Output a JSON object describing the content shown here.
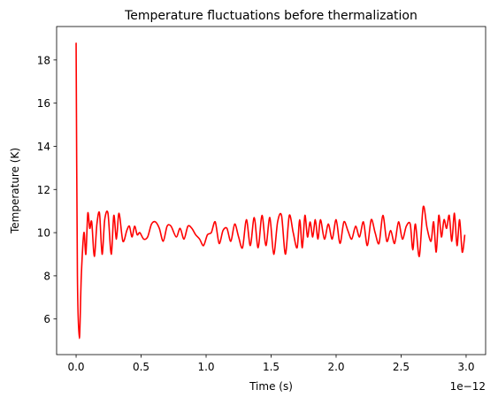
{
  "chart_data": {
    "type": "line",
    "title": "Temperature fluctuations before thermalization",
    "xlabel": "Time (s)",
    "ylabel": "Temperature (K)",
    "x_offset_label": "1e−12",
    "xlim": [
      -0.15,
      3.15
    ],
    "ylim": [
      4.35,
      19.55
    ],
    "x_ticks": [
      0.0,
      0.5,
      1.0,
      1.5,
      2.0,
      2.5,
      3.0
    ],
    "x_tick_labels": [
      "0.0",
      "0.5",
      "1.0",
      "1.5",
      "2.0",
      "2.5",
      "3.0"
    ],
    "y_ticks": [
      6,
      8,
      10,
      12,
      14,
      16,
      18
    ],
    "y_tick_labels": [
      "6",
      "8",
      "10",
      "12",
      "14",
      "16",
      "18"
    ],
    "grid": false,
    "legend": "none",
    "series": [
      {
        "color": "#ff0000",
        "x": [
          0.0,
          0.01,
          0.025,
          0.04,
          0.06,
          0.075,
          0.09,
          0.105,
          0.12,
          0.14,
          0.16,
          0.18,
          0.2,
          0.22,
          0.245,
          0.27,
          0.29,
          0.31,
          0.33,
          0.36,
          0.39,
          0.41,
          0.43,
          0.45,
          0.47,
          0.49,
          0.52,
          0.55,
          0.58,
          0.61,
          0.64,
          0.67,
          0.7,
          0.73,
          0.77,
          0.8,
          0.83,
          0.86,
          0.89,
          0.92,
          0.95,
          0.98,
          1.01,
          1.04,
          1.07,
          1.1,
          1.13,
          1.16,
          1.19,
          1.22,
          1.25,
          1.28,
          1.31,
          1.34,
          1.37,
          1.4,
          1.43,
          1.46,
          1.49,
          1.52,
          1.55,
          1.58,
          1.61,
          1.64,
          1.67,
          1.7,
          1.72,
          1.74,
          1.76,
          1.78,
          1.8,
          1.82,
          1.84,
          1.86,
          1.88,
          1.91,
          1.94,
          1.97,
          2.0,
          2.03,
          2.06,
          2.09,
          2.12,
          2.15,
          2.18,
          2.21,
          2.24,
          2.27,
          2.3,
          2.33,
          2.36,
          2.39,
          2.42,
          2.45,
          2.48,
          2.51,
          2.54,
          2.57,
          2.59,
          2.61,
          2.64,
          2.67,
          2.7,
          2.73,
          2.75,
          2.77,
          2.79,
          2.81,
          2.83,
          2.85,
          2.87,
          2.89,
          2.91,
          2.93,
          2.95,
          2.97,
          2.99
        ],
        "y": [
          18.8,
          8.0,
          5.1,
          8.0,
          10.0,
          9.0,
          10.9,
          10.2,
          10.5,
          8.9,
          10.4,
          10.9,
          9.0,
          10.6,
          10.9,
          9.0,
          10.8,
          9.7,
          10.9,
          9.6,
          10.1,
          10.3,
          9.8,
          10.3,
          9.9,
          10.0,
          9.7,
          9.8,
          10.4,
          10.5,
          10.2,
          9.6,
          10.3,
          10.3,
          9.8,
          10.2,
          9.7,
          10.3,
          10.2,
          9.9,
          9.7,
          9.4,
          9.9,
          10.0,
          10.5,
          9.5,
          10.1,
          10.2,
          9.6,
          10.4,
          9.8,
          9.3,
          10.6,
          9.4,
          10.7,
          9.3,
          10.8,
          9.4,
          10.7,
          9.0,
          10.5,
          10.8,
          9.0,
          10.8,
          10.0,
          9.3,
          10.6,
          9.3,
          10.8,
          9.8,
          10.5,
          9.8,
          10.6,
          9.7,
          10.6,
          9.7,
          10.4,
          9.7,
          10.6,
          9.5,
          10.5,
          10.1,
          9.7,
          10.3,
          9.8,
          10.5,
          9.4,
          10.6,
          10.0,
          9.5,
          10.8,
          9.6,
          10.1,
          9.5,
          10.5,
          9.7,
          10.3,
          10.4,
          9.2,
          10.4,
          8.9,
          11.2,
          10.2,
          9.6,
          10.5,
          9.1,
          10.8,
          9.8,
          10.6,
          10.2,
          10.8,
          9.6,
          10.9,
          9.4,
          10.6,
          9.1,
          9.9
        ]
      }
    ]
  }
}
